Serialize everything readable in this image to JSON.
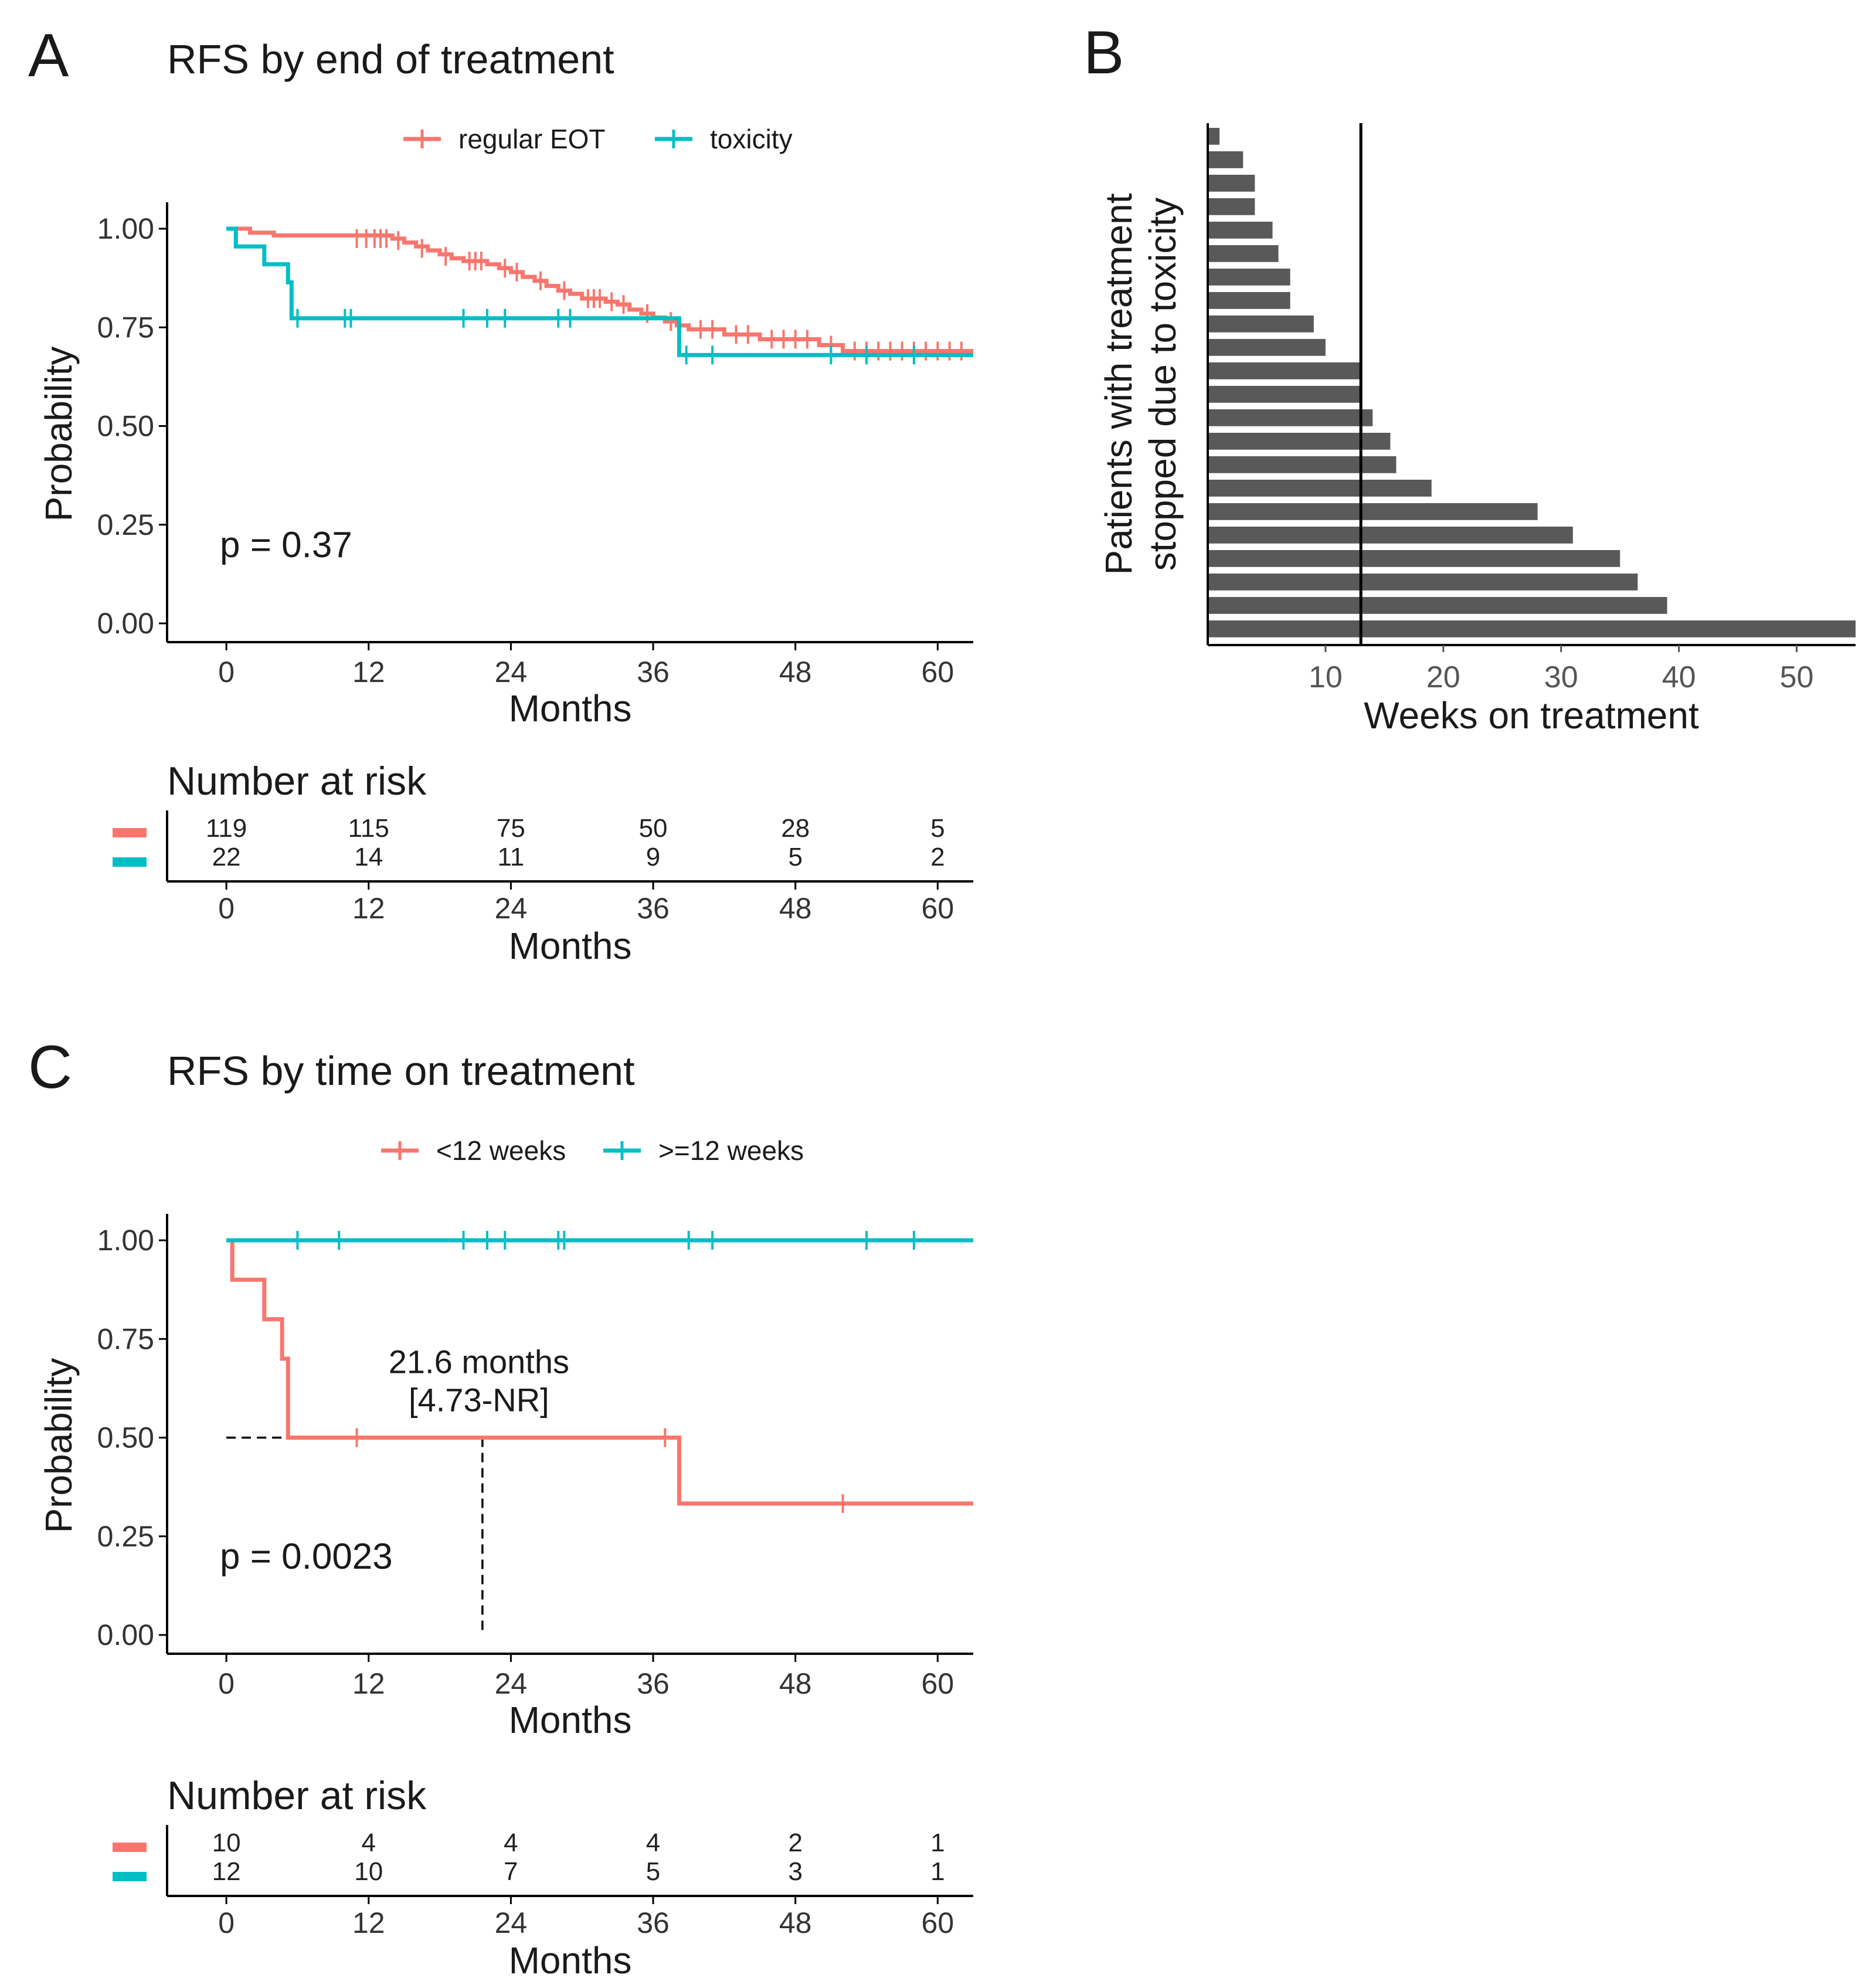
{
  "colors": {
    "red": "#F8766D",
    "teal": "#00BFC4",
    "bar": "#595959",
    "axis": "#000000"
  },
  "chart_data": [
    {
      "id": "A",
      "type": "line",
      "panel_label": "A",
      "title": "RFS by end of treatment",
      "xlabel": "Months",
      "ylabel": "Probability",
      "xlim": [
        -5,
        63
      ],
      "ylim": [
        0,
        1
      ],
      "xticks": [
        "0",
        "12",
        "24",
        "36",
        "48",
        "60"
      ],
      "xtick_values": [
        0,
        12,
        24,
        36,
        48,
        60
      ],
      "yticks": [
        "0.00",
        "0.25",
        "0.50",
        "0.75",
        "1.00"
      ],
      "ytick_values": [
        0,
        0.25,
        0.5,
        0.75,
        1
      ],
      "legend": [
        "regular EOT",
        "toxicity"
      ],
      "legend_position": "top",
      "pvalue": "p = 0.37",
      "series": [
        {
          "name": "regular EOT",
          "color_key": "red",
          "steps": [
            [
              0,
              1.0
            ],
            [
              2,
              0.99
            ],
            [
              4,
              0.983
            ],
            [
              14,
              0.975
            ],
            [
              15,
              0.965
            ],
            [
              16,
              0.955
            ],
            [
              17,
              0.945
            ],
            [
              18,
              0.935
            ],
            [
              19,
              0.925
            ],
            [
              20,
              0.918
            ],
            [
              22,
              0.91
            ],
            [
              23,
              0.9
            ],
            [
              24,
              0.89
            ],
            [
              25,
              0.878
            ],
            [
              26,
              0.868
            ],
            [
              27,
              0.855
            ],
            [
              28,
              0.843
            ],
            [
              29,
              0.835
            ],
            [
              30,
              0.823
            ],
            [
              32,
              0.815
            ],
            [
              33,
              0.808
            ],
            [
              34,
              0.795
            ],
            [
              35,
              0.785
            ],
            [
              36,
              0.775
            ],
            [
              37,
              0.765
            ],
            [
              38,
              0.755
            ],
            [
              39,
              0.745
            ],
            [
              42,
              0.732
            ],
            [
              45,
              0.72
            ],
            [
              50,
              0.705
            ],
            [
              52,
              0.69
            ],
            [
              63,
              0.69
            ]
          ],
          "censored": [
            [
              11,
              0.975
            ],
            [
              11.8,
              0.975
            ],
            [
              12.5,
              0.975
            ],
            [
              13,
              0.975
            ],
            [
              13.5,
              0.975
            ],
            [
              14.5,
              0.97
            ],
            [
              16.5,
              0.95
            ],
            [
              18.5,
              0.93
            ],
            [
              20.5,
              0.918
            ],
            [
              21,
              0.918
            ],
            [
              21.5,
              0.918
            ],
            [
              23.5,
              0.9
            ],
            [
              24.5,
              0.89
            ],
            [
              26.5,
              0.868
            ],
            [
              28.5,
              0.843
            ],
            [
              30.5,
              0.823
            ],
            [
              31,
              0.823
            ],
            [
              31.5,
              0.823
            ],
            [
              32.5,
              0.815
            ],
            [
              33.5,
              0.808
            ],
            [
              35.5,
              0.785
            ],
            [
              37.5,
              0.765
            ],
            [
              40,
              0.745
            ],
            [
              41,
              0.745
            ],
            [
              43,
              0.732
            ],
            [
              44,
              0.732
            ],
            [
              46,
              0.72
            ],
            [
              47,
              0.72
            ],
            [
              48,
              0.72
            ],
            [
              49,
              0.72
            ],
            [
              51,
              0.705
            ],
            [
              53,
              0.69
            ],
            [
              54,
              0.69
            ],
            [
              55,
              0.69
            ],
            [
              56,
              0.69
            ],
            [
              57,
              0.69
            ],
            [
              58,
              0.69
            ],
            [
              59,
              0.69
            ],
            [
              60,
              0.69
            ],
            [
              61,
              0.69
            ],
            [
              62,
              0.69
            ]
          ]
        },
        {
          "name": "toxicity",
          "color_key": "teal",
          "steps": [
            [
              0,
              1.0
            ],
            [
              0.8,
              0.955
            ],
            [
              3.2,
              0.91
            ],
            [
              5.2,
              0.864
            ],
            [
              5.5,
              0.773
            ],
            [
              38,
              0.773
            ],
            [
              38.2,
              0.68
            ],
            [
              63,
              0.68
            ]
          ],
          "censored": [
            [
              6,
              0.773
            ],
            [
              10,
              0.773
            ],
            [
              10.5,
              0.773
            ],
            [
              20,
              0.773
            ],
            [
              22,
              0.773
            ],
            [
              23.5,
              0.773
            ],
            [
              28,
              0.773
            ],
            [
              29,
              0.773
            ],
            [
              38.8,
              0.68
            ],
            [
              41,
              0.68
            ],
            [
              51,
              0.68
            ],
            [
              54,
              0.68
            ],
            [
              58,
              0.68
            ]
          ]
        }
      ],
      "risk_table": {
        "title": "Number at risk",
        "xlabel": "Months",
        "times": [
          0,
          12,
          24,
          36,
          48,
          60
        ],
        "rows": [
          {
            "name": "regular EOT",
            "color_key": "red",
            "values": [
              "119",
              "115",
              "75",
              "50",
              "28",
              "5"
            ]
          },
          {
            "name": "toxicity",
            "color_key": "teal",
            "values": [
              "22",
              "14",
              "11",
              "9",
              "5",
              "2"
            ]
          }
        ]
      }
    },
    {
      "id": "B",
      "type": "bar",
      "orientation": "horizontal",
      "panel_label": "B",
      "xlabel": "Weeks on treatment",
      "ylabel": "Patients with treatment stopped due to toxicity",
      "ylabel_lines": [
        "Patients with treatment",
        "stopped due to toxicity"
      ],
      "xlim": [
        0,
        55
      ],
      "xticks": [
        "10",
        "20",
        "30",
        "40",
        "50"
      ],
      "xtick_values": [
        10,
        20,
        30,
        40,
        50
      ],
      "reference_line_x": 13,
      "values": [
        1,
        3,
        4,
        4,
        5.5,
        6,
        7,
        7,
        9,
        10,
        13,
        13,
        14,
        15.5,
        16,
        19,
        28,
        31,
        35,
        36.5,
        39,
        55
      ]
    },
    {
      "id": "C",
      "type": "line",
      "panel_label": "C",
      "title": "RFS by time on treatment",
      "xlabel": "Months",
      "ylabel": "Probability",
      "xlim": [
        -5,
        63
      ],
      "ylim": [
        0,
        1
      ],
      "xticks": [
        "0",
        "12",
        "24",
        "36",
        "48",
        "60"
      ],
      "xtick_values": [
        0,
        12,
        24,
        36,
        48,
        60
      ],
      "yticks": [
        "0.00",
        "0.25",
        "0.50",
        "0.75",
        "1.00"
      ],
      "ytick_values": [
        0,
        0.25,
        0.5,
        0.75,
        1
      ],
      "legend": [
        "<12 weeks",
        ">=12 weeks"
      ],
      "legend_position": "top",
      "pvalue": "p = 0.0023",
      "median_label": [
        "21.6 months",
        "[4.73-NR]"
      ],
      "median_value": 21.6,
      "series": [
        {
          "name": "<12 weeks",
          "color_key": "red",
          "steps": [
            [
              0,
              1.0
            ],
            [
              0.5,
              0.9
            ],
            [
              3.2,
              0.8
            ],
            [
              4.7,
              0.7
            ],
            [
              5.2,
              0.5
            ],
            [
              38,
              0.5
            ],
            [
              38.2,
              0.333
            ],
            [
              63,
              0.333
            ]
          ],
          "censored": [
            [
              11,
              0.5
            ],
            [
              37,
              0.5
            ],
            [
              52,
              0.333
            ]
          ]
        },
        {
          "name": ">=12 weeks",
          "color_key": "teal",
          "steps": [
            [
              0,
              1.0
            ],
            [
              63,
              1.0
            ]
          ],
          "censored": [
            [
              6,
              1.0
            ],
            [
              9.5,
              1.0
            ],
            [
              20,
              1.0
            ],
            [
              22,
              1.0
            ],
            [
              23.5,
              1.0
            ],
            [
              28,
              1.0
            ],
            [
              28.5,
              1.0
            ],
            [
              39,
              1.0
            ],
            [
              41,
              1.0
            ],
            [
              54,
              1.0
            ],
            [
              58,
              1.0
            ]
          ]
        }
      ],
      "risk_table": {
        "title": "Number at risk",
        "xlabel": "Months",
        "times": [
          0,
          12,
          24,
          36,
          48,
          60
        ],
        "rows": [
          {
            "name": "<12 weeks",
            "color_key": "red",
            "values": [
              "10",
              "4",
              "4",
              "4",
              "2",
              "1"
            ]
          },
          {
            "name": ">=12 weeks",
            "color_key": "teal",
            "values": [
              "12",
              "10",
              "7",
              "5",
              "3",
              "1"
            ]
          }
        ]
      }
    }
  ]
}
